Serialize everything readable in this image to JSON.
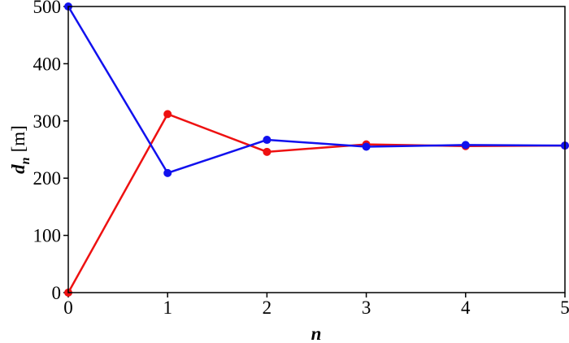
{
  "chart_data": {
    "type": "line",
    "xlabel": "n",
    "ylabel": {
      "symbol": "d",
      "subscript": "n",
      "unit": "[m]"
    },
    "x": [
      0,
      1,
      2,
      3,
      4,
      5
    ],
    "series": [
      {
        "color": "#ee1111",
        "values": [
          0,
          312,
          246,
          259,
          256,
          257
        ]
      },
      {
        "color": "#1111ee",
        "values": [
          500,
          209,
          267,
          255,
          258,
          257
        ]
      }
    ],
    "xlim": [
      0,
      5
    ],
    "ylim": [
      0,
      500
    ],
    "xticks": [
      0,
      1,
      2,
      3,
      4,
      5
    ],
    "yticks": [
      0,
      100,
      200,
      300,
      400,
      500
    ]
  }
}
